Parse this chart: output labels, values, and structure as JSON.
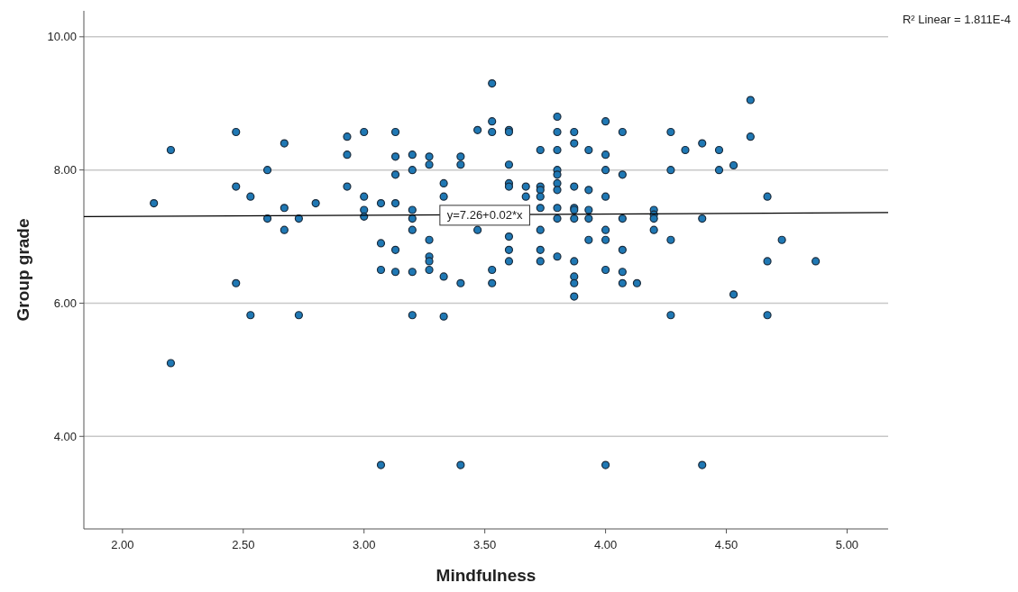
{
  "chart_data": {
    "type": "scatter",
    "xlabel": "Mindfulness",
    "ylabel": "Group grade",
    "xlim": [
      1.84,
      5.17
    ],
    "ylim": [
      2.61,
      10.39
    ],
    "xticks": [
      {
        "value": 2,
        "label": "2.00"
      },
      {
        "value": 2.5,
        "label": "2.50"
      },
      {
        "value": 3,
        "label": "3.00"
      },
      {
        "value": 3.5,
        "label": "3.50"
      },
      {
        "value": 4,
        "label": "4.00"
      },
      {
        "value": 4.5,
        "label": "4.50"
      },
      {
        "value": 5,
        "label": "5.00"
      }
    ],
    "yticks": [
      {
        "value": 4,
        "label": "4.00"
      },
      {
        "value": 6,
        "label": "6.00"
      },
      {
        "value": 8,
        "label": "8.00"
      },
      {
        "value": 10,
        "label": "10.00"
      }
    ],
    "grid": "y",
    "series": [
      {
        "marker": "circle",
        "color": "#1f78b4",
        "x": [
          2.13,
          2.2,
          2.2,
          2.47,
          2.47,
          2.47,
          2.53,
          2.53,
          2.6,
          2.6,
          2.67,
          2.67,
          2.67,
          2.73,
          2.73,
          2.8,
          2.93,
          2.93,
          2.93,
          3.0,
          3.0,
          3.0,
          3.0,
          3.07,
          3.07,
          3.07,
          3.07,
          3.13,
          3.13,
          3.13,
          3.13,
          3.13,
          3.13,
          3.2,
          3.2,
          3.2,
          3.2,
          3.2,
          3.2,
          3.2,
          3.27,
          3.27,
          3.27,
          3.27,
          3.27,
          3.27,
          3.33,
          3.33,
          3.33,
          3.33,
          3.4,
          3.4,
          3.4,
          3.4,
          3.47,
          3.47,
          3.53,
          3.53,
          3.53,
          3.53,
          3.53,
          3.6,
          3.6,
          3.6,
          3.6,
          3.6,
          3.6,
          3.6,
          3.6,
          3.67,
          3.67,
          3.73,
          3.73,
          3.73,
          3.73,
          3.73,
          3.73,
          3.73,
          3.73,
          3.8,
          3.8,
          3.8,
          3.8,
          3.8,
          3.8,
          3.8,
          3.8,
          3.8,
          3.8,
          3.87,
          3.87,
          3.87,
          3.87,
          3.87,
          3.87,
          3.87,
          3.87,
          3.87,
          3.87,
          3.93,
          3.93,
          3.93,
          3.93,
          3.93,
          4.0,
          4.0,
          4.0,
          4.0,
          4.0,
          4.0,
          4.0,
          4.0,
          4.07,
          4.07,
          4.07,
          4.07,
          4.07,
          4.07,
          4.13,
          4.2,
          4.2,
          4.2,
          4.2,
          4.27,
          4.27,
          4.27,
          4.27,
          4.33,
          4.4,
          4.4,
          4.4,
          4.47,
          4.47,
          4.53,
          4.53,
          4.6,
          4.6,
          4.67,
          4.67,
          4.67,
          4.73,
          4.87
        ],
        "values": [
          7.5,
          8.3,
          5.1,
          8.57,
          7.75,
          6.3,
          7.6,
          5.82,
          8.0,
          7.27,
          8.4,
          7.43,
          7.1,
          7.27,
          5.82,
          7.5,
          8.5,
          8.23,
          7.75,
          8.57,
          7.6,
          7.4,
          7.3,
          7.5,
          6.9,
          6.5,
          3.57,
          8.57,
          8.2,
          7.93,
          7.5,
          6.8,
          6.47,
          8.23,
          8.0,
          7.4,
          7.27,
          7.1,
          6.47,
          5.82,
          8.2,
          8.08,
          6.95,
          6.7,
          6.63,
          6.5,
          7.8,
          7.6,
          6.4,
          5.8,
          8.2,
          8.08,
          6.3,
          3.57,
          8.6,
          7.1,
          9.3,
          8.73,
          8.57,
          6.5,
          6.3,
          8.6,
          8.57,
          8.08,
          7.8,
          7.75,
          7.0,
          6.8,
          6.63,
          7.75,
          7.6,
          8.3,
          7.75,
          7.7,
          7.6,
          7.43,
          7.1,
          6.8,
          6.63,
          8.8,
          8.57,
          8.3,
          8.0,
          7.93,
          7.8,
          7.7,
          7.43,
          7.27,
          6.7,
          8.57,
          8.4,
          7.75,
          7.43,
          7.4,
          7.27,
          6.63,
          6.4,
          6.3,
          6.1,
          8.3,
          7.7,
          7.4,
          7.27,
          6.95,
          8.73,
          8.23,
          8.0,
          7.6,
          7.1,
          6.95,
          6.5,
          3.57,
          8.57,
          7.93,
          7.27,
          6.8,
          6.47,
          6.3,
          6.3,
          7.4,
          7.33,
          7.27,
          7.1,
          8.57,
          8.0,
          6.95,
          5.82,
          8.3,
          8.4,
          7.27,
          3.57,
          8.3,
          8.0,
          8.07,
          6.13,
          9.05,
          8.5,
          7.6,
          6.63,
          5.82,
          6.95,
          6.63
        ]
      },
      {
        "type": "line",
        "color": "#000000",
        "x": [
          1.84,
          5.17
        ],
        "values": [
          7.3,
          7.36
        ]
      }
    ],
    "annotations": [
      "R² Linear = 1.811E-4",
      {
        "text": "y=7.26+0.02*x",
        "x": 3.5,
        "y": 7.32
      }
    ]
  }
}
